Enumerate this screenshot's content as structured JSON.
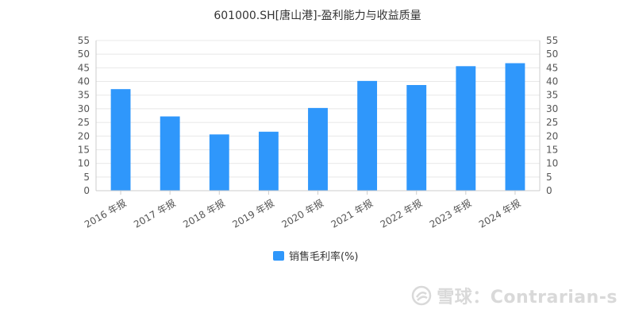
{
  "chart_data": {
    "type": "bar",
    "title": "601000.SH[唐山港]-盈利能力与收益质量",
    "categories": [
      "2016 年报",
      "2017 年报",
      "2018 年报",
      "2019 年报",
      "2020 年报",
      "2021 年报",
      "2022 年报",
      "2023 年报",
      "2024 年报"
    ],
    "series": [
      {
        "name": "销售毛利率(%)",
        "values": [
          37.2,
          27.2,
          20.6,
          21.6,
          30.3,
          40.2,
          38.7,
          45.6,
          46.7
        ]
      }
    ],
    "ylim": [
      0,
      55
    ],
    "yticks": [
      0,
      5,
      10,
      15,
      20,
      25,
      30,
      35,
      40,
      45,
      50,
      55
    ],
    "right_axis_mirror": true,
    "grid": true,
    "legend_position": "bottom-center",
    "colors": {
      "bar": "#2f97fb",
      "grid": "#e8e8e8",
      "axis": "#cccccc",
      "text": "#555555",
      "title": "#333333"
    }
  },
  "watermark": {
    "icon": "snowball-logo-icon",
    "text": "雪球：Contrarian-s"
  }
}
